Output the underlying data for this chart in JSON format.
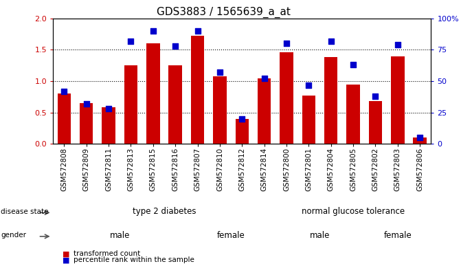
{
  "title": "GDS3883 / 1565639_a_at",
  "samples": [
    "GSM572808",
    "GSM572809",
    "GSM572811",
    "GSM572813",
    "GSM572815",
    "GSM572816",
    "GSM572807",
    "GSM572810",
    "GSM572812",
    "GSM572814",
    "GSM572800",
    "GSM572801",
    "GSM572804",
    "GSM572805",
    "GSM572802",
    "GSM572803",
    "GSM572806"
  ],
  "bar_values": [
    0.8,
    0.65,
    0.58,
    1.25,
    1.6,
    1.25,
    1.72,
    1.08,
    0.4,
    1.05,
    1.46,
    0.77,
    1.38,
    0.95,
    0.68,
    1.4,
    0.1
  ],
  "dot_values": [
    42,
    32,
    28,
    82,
    90,
    78,
    90,
    57,
    20,
    52,
    80,
    47,
    82,
    63,
    38,
    79,
    5
  ],
  "bar_color": "#cc0000",
  "dot_color": "#0000cc",
  "ylim_left": [
    0,
    2
  ],
  "ylim_right": [
    0,
    100
  ],
  "yticks_left": [
    0,
    0.5,
    1.0,
    1.5,
    2.0
  ],
  "yticks_right": [
    0,
    25,
    50,
    75,
    100
  ],
  "disease_colors": {
    "type 2 diabetes": "#bbffbb",
    "normal glucose tolerance": "#55cc55"
  },
  "gender_colors": {
    "male": "#ee88ee",
    "female": "#bb44bb"
  },
  "tick_label_fontsize": 7.5,
  "title_fontsize": 11,
  "bar_width": 0.6,
  "dot_size": 28,
  "hgrid_vals": [
    0.5,
    1.0,
    1.5
  ],
  "disease_ranges": [
    [
      0,
      9
    ],
    [
      10,
      16
    ]
  ],
  "disease_labels": [
    "type 2 diabetes",
    "normal glucose tolerance"
  ],
  "gender_ranges": [
    [
      0,
      5
    ],
    [
      6,
      9
    ],
    [
      10,
      13
    ],
    [
      14,
      16
    ]
  ],
  "gender_labels": [
    "male",
    "female",
    "male",
    "female"
  ]
}
